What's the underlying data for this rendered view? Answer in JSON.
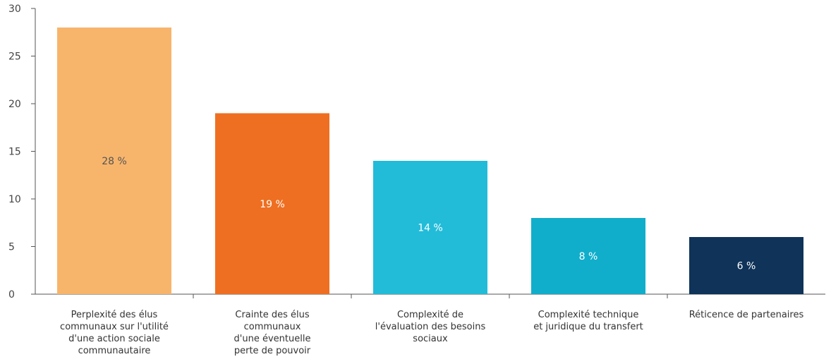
{
  "chart_data": {
    "type": "bar",
    "title": "",
    "xlabel": "",
    "ylabel": "",
    "ylim": [
      0,
      30
    ],
    "yticks": [
      0,
      5,
      10,
      15,
      20,
      25,
      30
    ],
    "grid": false,
    "categories": [
      [
        "Perplexité des élus",
        "communaux sur l'utilité",
        "d'une action sociale",
        "communautaire"
      ],
      [
        "Crainte des élus",
        "communaux",
        "d'une éventuelle",
        "perte de pouvoir"
      ],
      [
        "Complexité de",
        "l'évaluation des besoins",
        "sociaux"
      ],
      [
        "Complexité technique",
        "et juridique du transfert"
      ],
      [
        "Réticence de partenaires"
      ]
    ],
    "values": [
      28,
      19,
      14,
      8,
      6
    ],
    "value_labels": [
      "28 %",
      "19 %",
      "14 %",
      "8 %",
      "6 %"
    ],
    "colors": [
      "#f7b56c",
      "#ee6f21",
      "#22bcd9",
      "#10aecb",
      "#0f3359"
    ],
    "label_colors": [
      "#555555",
      "#ffffff",
      "#ffffff",
      "#ffffff",
      "#ffffff"
    ]
  }
}
